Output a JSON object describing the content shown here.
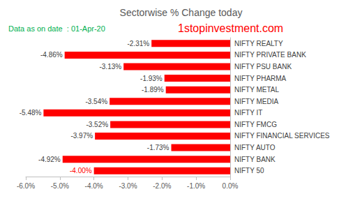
{
  "chart_data": {
    "type": "bar",
    "orientation": "horizontal",
    "title": "Sectorwise % Change today",
    "annotations": [
      "Data as on date  : 01-Apr-20",
      "1stopinvestment.com"
    ],
    "categories": [
      "NIFTY REALTY",
      "NIFTY PRIVATE BANK",
      "NIFTY PSU BANK",
      "NIFTY PHARMA",
      "NIFTY METAL",
      "NIFTY MEDIA",
      "NIFTY IT",
      "NIFTY FMCG",
      "NIFTY FINANCIAL SERVICES",
      "NIFTY AUTO",
      "NIFTY BANK",
      "NIFTY 50"
    ],
    "values": [
      -2.31,
      -4.86,
      -3.13,
      -1.93,
      -1.89,
      -3.54,
      -5.48,
      -3.52,
      -3.97,
      -1.73,
      -4.92,
      -4.0
    ],
    "value_labels": [
      "-2.31%",
      "-4.86%",
      "-3.13%",
      "-1.93%",
      "-1.89%",
      "-3.54%",
      "-5.48%",
      "-3.52%",
      "-3.97%",
      "-1.73%",
      "-4.92%",
      "-4.00%"
    ],
    "data_labels": true,
    "color": "#ff0000",
    "xlim": [
      -6,
      0
    ],
    "xticks": [
      {
        "value": -6,
        "label": "-6.0%"
      },
      {
        "value": -5,
        "label": "-5.0%"
      },
      {
        "value": -4,
        "label": "-4.0%"
      },
      {
        "value": -3,
        "label": "-3.0%"
      },
      {
        "value": -2,
        "label": "-2.0%"
      },
      {
        "value": -1,
        "label": "-1.0%"
      },
      {
        "value": 0,
        "label": "0.0%"
      }
    ],
    "grid": false
  }
}
